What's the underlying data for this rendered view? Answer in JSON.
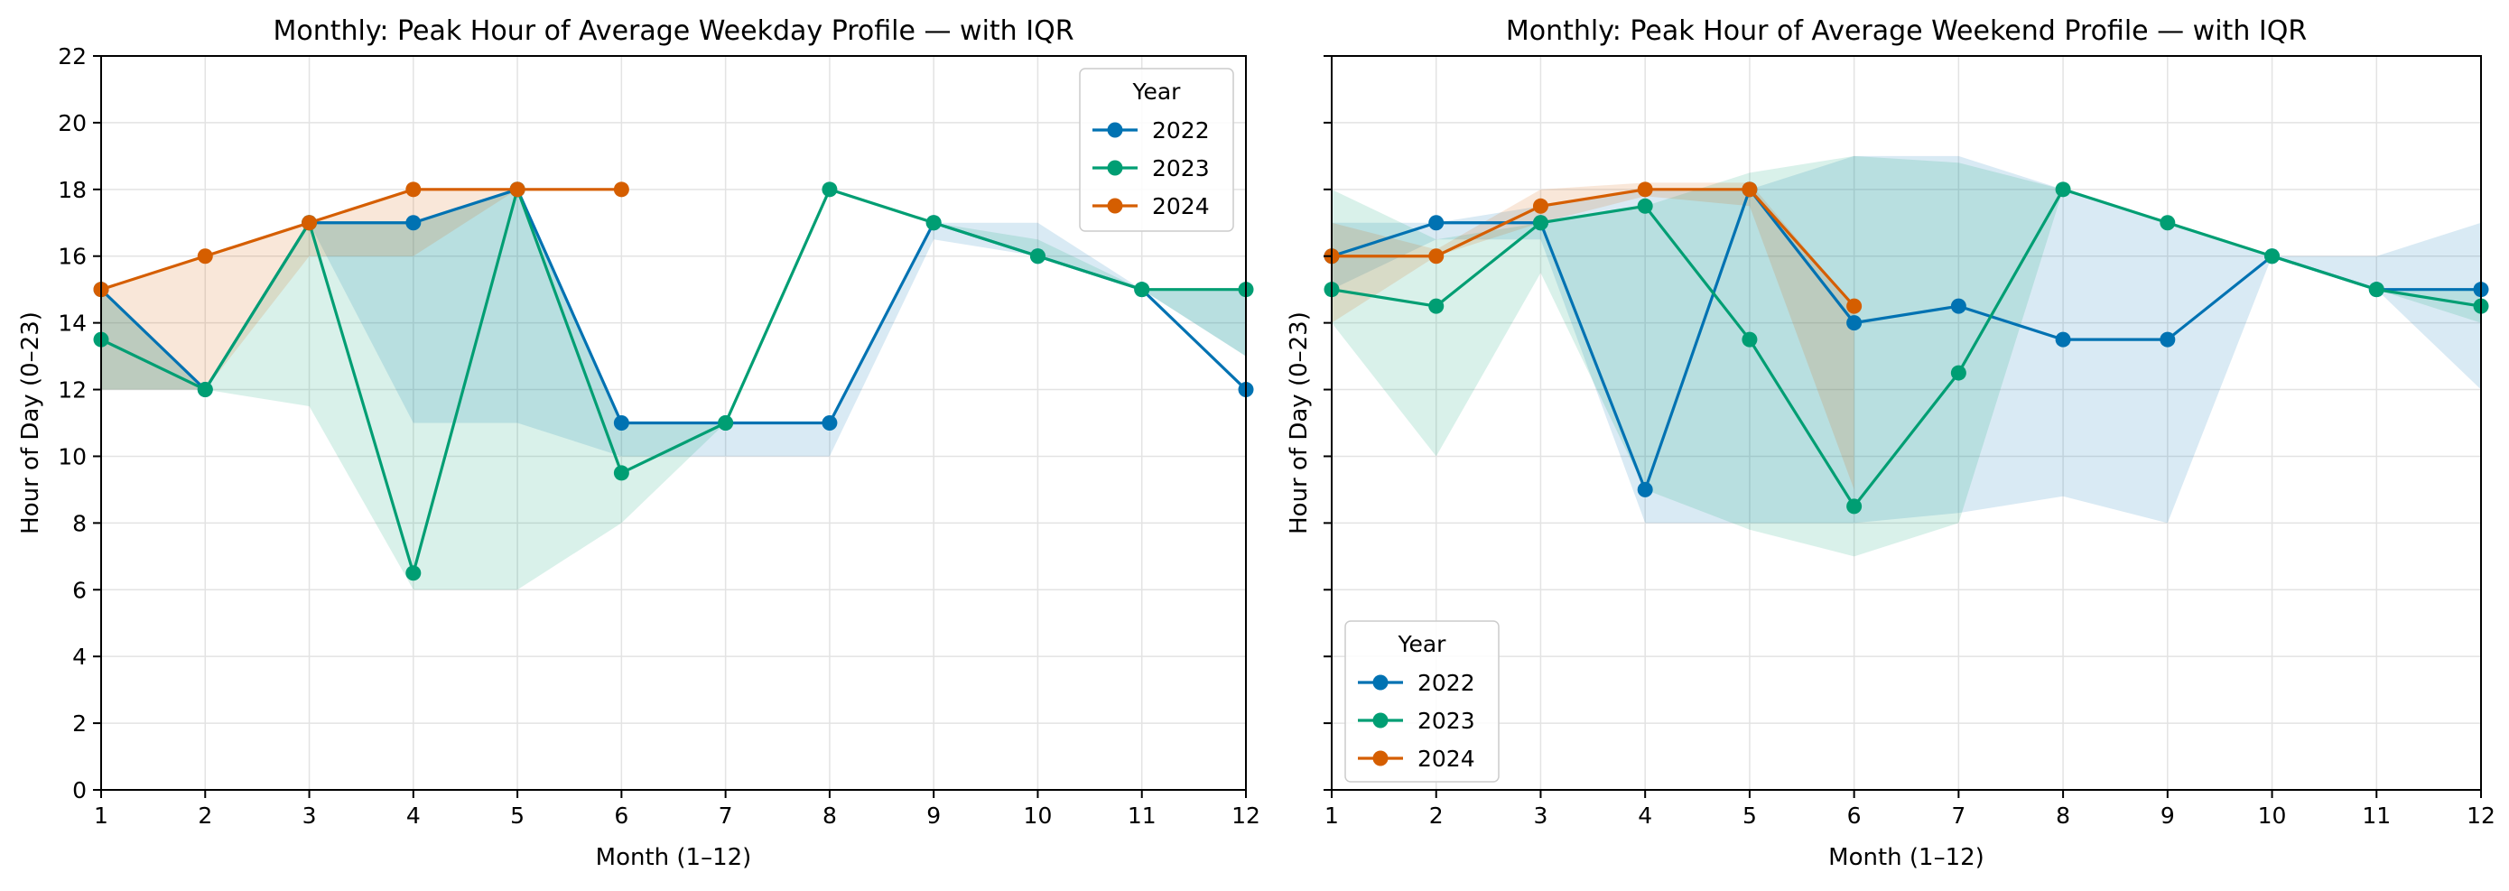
{
  "chart_data": [
    {
      "type": "line",
      "title": "Monthly: Peak Hour of Average Weekday Profile — with IQR",
      "xlabel": "Month (1–12)",
      "ylabel": "Hour of Day (0–23)",
      "xlim": [
        1,
        12
      ],
      "ylim": [
        0,
        22
      ],
      "xticks": [
        "1",
        "2",
        "3",
        "4",
        "5",
        "6",
        "7",
        "8",
        "9",
        "10",
        "11",
        "12"
      ],
      "yticks": [
        "0",
        "2",
        "4",
        "6",
        "8",
        "10",
        "12",
        "14",
        "16",
        "18",
        "20",
        "22"
      ],
      "grid": true,
      "legend": {
        "title": "Year",
        "placement": "upper right"
      },
      "series": [
        {
          "name": "2022",
          "color": "#0072B2",
          "x": [
            1,
            2,
            3,
            4,
            5,
            6,
            7,
            8,
            9,
            10,
            11,
            12
          ],
          "y": [
            15,
            12,
            17,
            17,
            18,
            11,
            11,
            11,
            17,
            16,
            15,
            12
          ],
          "iqr_low": [
            12,
            12,
            17,
            11,
            11,
            10,
            10,
            10,
            16.5,
            16,
            15,
            13
          ],
          "iqr_high": [
            15,
            12,
            17,
            17,
            18,
            11,
            11,
            11,
            17,
            17,
            15,
            15
          ]
        },
        {
          "name": "2023",
          "color": "#009E73",
          "x": [
            1,
            2,
            3,
            4,
            5,
            6,
            7,
            8,
            9,
            10,
            11,
            12
          ],
          "y": [
            13.5,
            12,
            17,
            6.5,
            18,
            9.5,
            11,
            18,
            17,
            16,
            15,
            15
          ],
          "iqr_low": [
            12,
            12,
            11.5,
            6,
            6,
            8,
            11,
            18,
            17,
            16,
            15,
            13
          ],
          "iqr_high": [
            15,
            12,
            17,
            17,
            18,
            11,
            11,
            18,
            17,
            16.5,
            15,
            15
          ]
        },
        {
          "name": "2024",
          "color": "#D55E00",
          "x": [
            1,
            2,
            3,
            4,
            5,
            6
          ],
          "y": [
            15,
            16,
            17,
            18,
            18,
            18
          ],
          "iqr_low": [
            12,
            12,
            16,
            16,
            18,
            18
          ],
          "iqr_high": [
            15,
            16,
            17,
            18,
            18,
            18
          ]
        }
      ]
    },
    {
      "type": "line",
      "title": "Monthly: Peak Hour of Average Weekend Profile — with IQR",
      "xlabel": "Month (1–12)",
      "ylabel": "Hour of Day (0–23)",
      "xlim": [
        1,
        12
      ],
      "ylim": [
        0,
        22
      ],
      "xticks": [
        "1",
        "2",
        "3",
        "4",
        "5",
        "6",
        "7",
        "8",
        "9",
        "10",
        "11",
        "12"
      ],
      "grid": true,
      "legend": {
        "title": "Year",
        "placement": "lower left"
      },
      "series": [
        {
          "name": "2022",
          "color": "#0072B2",
          "x": [
            1,
            2,
            3,
            4,
            5,
            6,
            7,
            8,
            9,
            10,
            11,
            12
          ],
          "y": [
            16,
            17,
            17,
            9,
            18,
            14,
            14.5,
            13.5,
            13.5,
            16,
            15,
            15
          ],
          "iqr_low": [
            15,
            16.5,
            16.5,
            8,
            8,
            8,
            8.3,
            8.8,
            8,
            16,
            15,
            12
          ],
          "iqr_high": [
            17,
            17,
            17.5,
            18,
            18,
            19,
            19,
            18,
            17,
            16,
            16,
            17
          ]
        },
        {
          "name": "2023",
          "color": "#009E73",
          "x": [
            1,
            2,
            3,
            4,
            5,
            6,
            7,
            8,
            9,
            10,
            11,
            12
          ],
          "y": [
            15,
            14.5,
            17,
            17.5,
            13.5,
            8.5,
            12.5,
            18,
            17,
            16,
            15,
            14.5
          ],
          "iqr_low": [
            14,
            10,
            15.5,
            9,
            7.8,
            7,
            8,
            18,
            17,
            16,
            15,
            14
          ],
          "iqr_high": [
            18,
            16.5,
            17,
            17.5,
            18.5,
            19,
            18.8,
            18,
            17,
            16,
            15,
            15
          ]
        },
        {
          "name": "2024",
          "color": "#D55E00",
          "x": [
            1,
            2,
            3,
            4,
            5,
            6
          ],
          "y": [
            16,
            16,
            17.5,
            18,
            18,
            14.5
          ],
          "iqr_low": [
            14,
            16,
            17,
            17.8,
            17.5,
            9
          ],
          "iqr_high": [
            17,
            16.2,
            18,
            18.2,
            18.2,
            14.5
          ]
        }
      ]
    }
  ]
}
